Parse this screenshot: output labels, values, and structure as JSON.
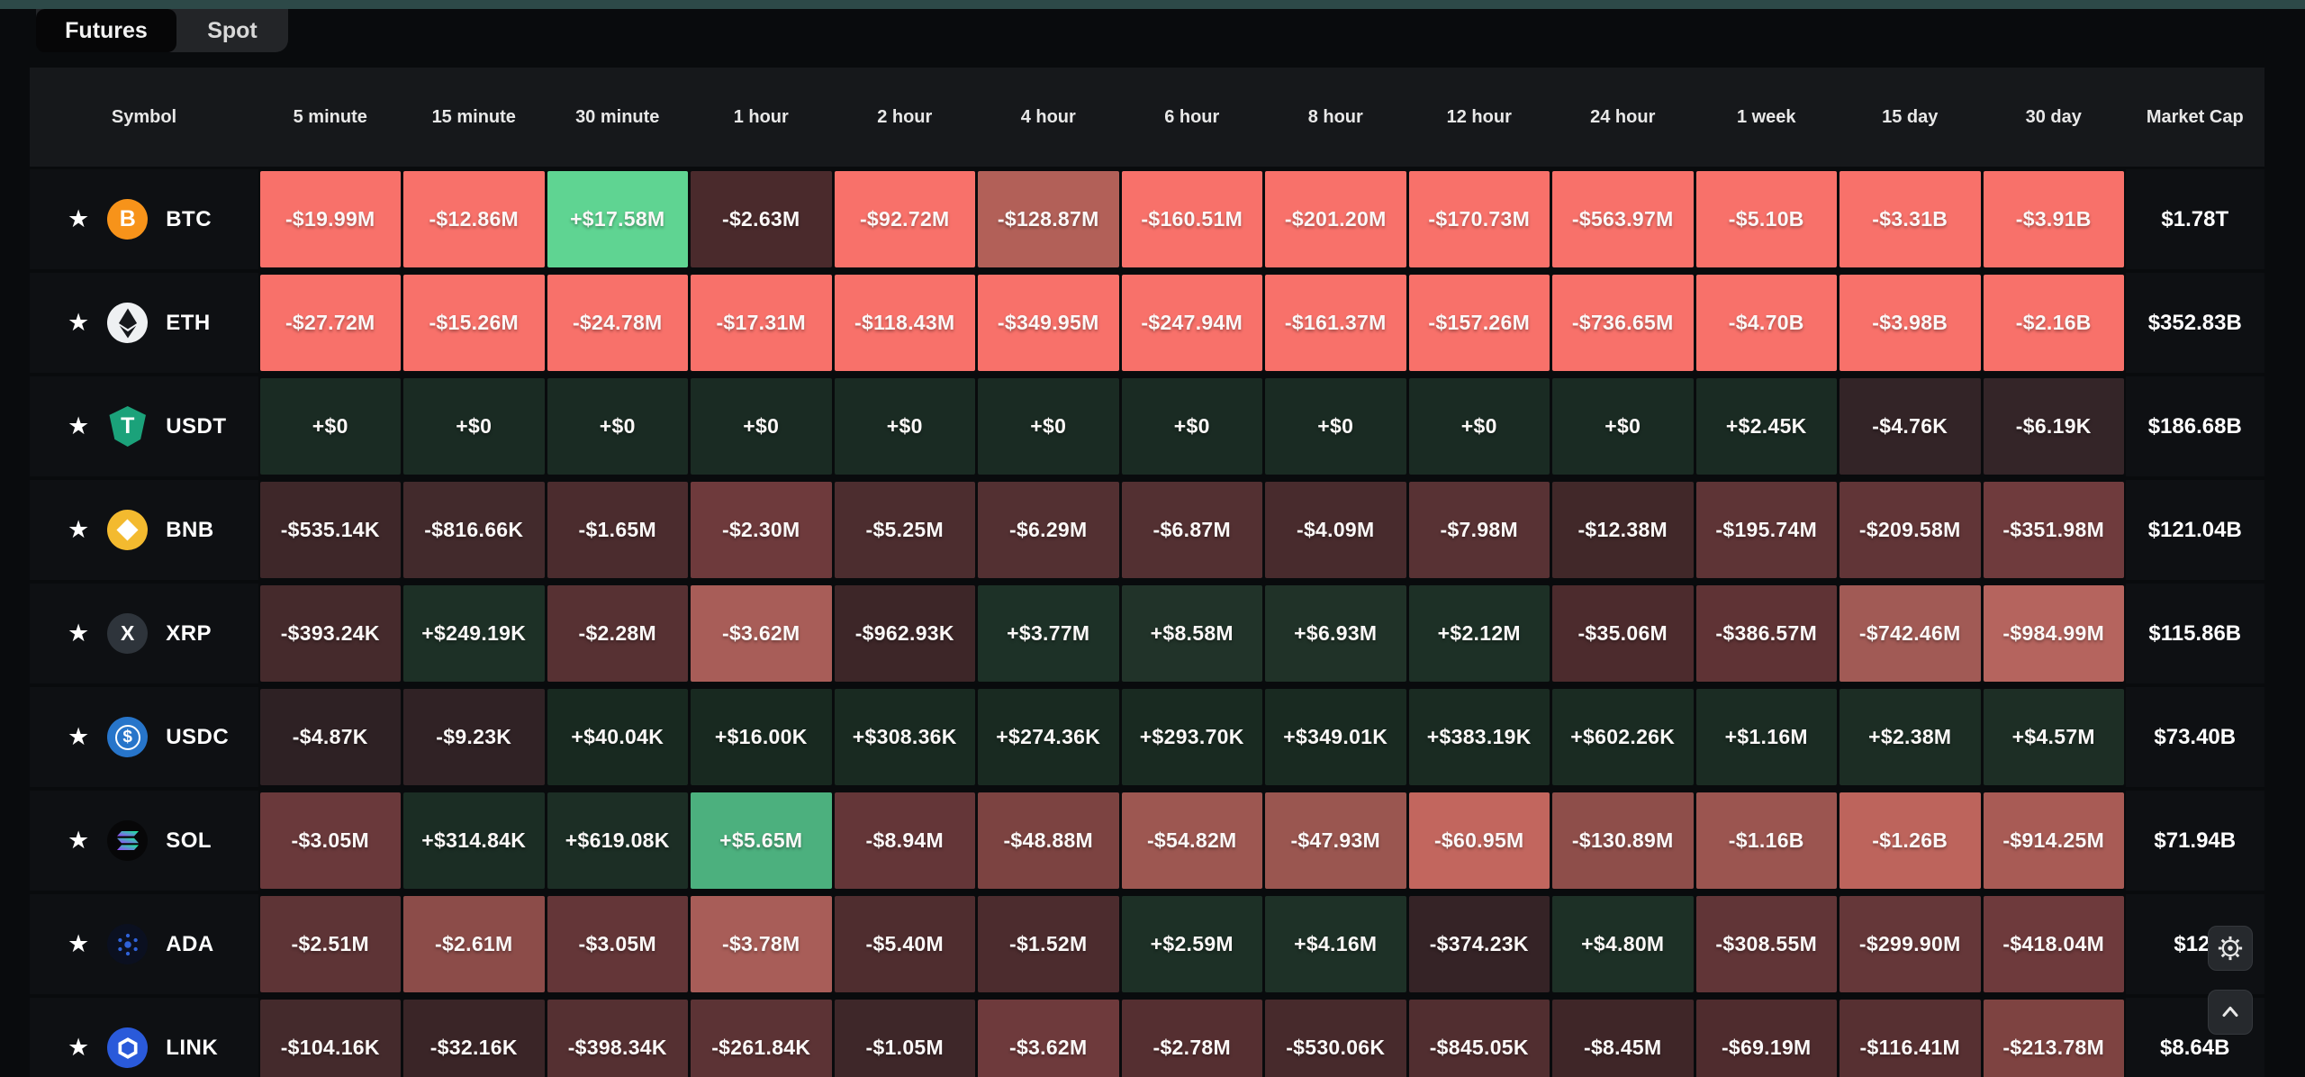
{
  "tabs": {
    "futures": "Futures",
    "spot": "Spot",
    "active": "Futures"
  },
  "columns": [
    "Symbol",
    "5 minute",
    "15 minute",
    "30 minute",
    "1 hour",
    "2 hour",
    "4 hour",
    "6 hour",
    "8 hour",
    "12 hour",
    "24 hour",
    "1 week",
    "15 day",
    "30 day",
    "Market Cap"
  ],
  "palette": {
    "page_bg": "#090b0d",
    "row_bg": "#0e1013",
    "header_bg": "#16181b",
    "topbar_teal": "#2d4948",
    "positive_bright": "#5fd492",
    "negative_bright": "#f8716a"
  },
  "rows": [
    {
      "symbol": "BTC",
      "icon": "btc-coin-icon",
      "market_cap": "$1.78T",
      "cells": [
        {
          "v": "-$19.99M",
          "c": "#f8716a"
        },
        {
          "v": "-$12.86M",
          "c": "#f8716a"
        },
        {
          "v": "+$17.58M",
          "c": "#5fd492"
        },
        {
          "v": "-$2.63M",
          "c": "#4a2a2c"
        },
        {
          "v": "-$92.72M",
          "c": "#f8716a"
        },
        {
          "v": "-$128.87M",
          "c": "#b26058"
        },
        {
          "v": "-$160.51M",
          "c": "#f8716a"
        },
        {
          "v": "-$201.20M",
          "c": "#f8716a"
        },
        {
          "v": "-$170.73M",
          "c": "#f8716a"
        },
        {
          "v": "-$563.97M",
          "c": "#f8716a"
        },
        {
          "v": "-$5.10B",
          "c": "#f8716a"
        },
        {
          "v": "-$3.31B",
          "c": "#f8716a"
        },
        {
          "v": "-$3.91B",
          "c": "#f8716a"
        }
      ]
    },
    {
      "symbol": "ETH",
      "icon": "eth-coin-icon",
      "market_cap": "$352.83B",
      "cells": [
        {
          "v": "-$27.72M",
          "c": "#f8716a"
        },
        {
          "v": "-$15.26M",
          "c": "#f8716a"
        },
        {
          "v": "-$24.78M",
          "c": "#f8716a"
        },
        {
          "v": "-$17.31M",
          "c": "#f8716a"
        },
        {
          "v": "-$118.43M",
          "c": "#f8716a"
        },
        {
          "v": "-$349.95M",
          "c": "#f8716a"
        },
        {
          "v": "-$247.94M",
          "c": "#f8716a"
        },
        {
          "v": "-$161.37M",
          "c": "#f8716a"
        },
        {
          "v": "-$157.26M",
          "c": "#f8716a"
        },
        {
          "v": "-$736.65M",
          "c": "#f8716a"
        },
        {
          "v": "-$4.70B",
          "c": "#f8716a"
        },
        {
          "v": "-$3.98B",
          "c": "#f8716a"
        },
        {
          "v": "-$2.16B",
          "c": "#f8716a"
        }
      ]
    },
    {
      "symbol": "USDT",
      "icon": "usdt-coin-icon",
      "market_cap": "$186.68B",
      "cells": [
        {
          "v": "+$0",
          "c": "#1a2b23"
        },
        {
          "v": "+$0",
          "c": "#1a2b23"
        },
        {
          "v": "+$0",
          "c": "#1a2b23"
        },
        {
          "v": "+$0",
          "c": "#1a2b23"
        },
        {
          "v": "+$0",
          "c": "#1a2b23"
        },
        {
          "v": "+$0",
          "c": "#1a2b23"
        },
        {
          "v": "+$0",
          "c": "#1a2b23"
        },
        {
          "v": "+$0",
          "c": "#1a2b23"
        },
        {
          "v": "+$0",
          "c": "#1a2b23"
        },
        {
          "v": "+$0",
          "c": "#1a2b23"
        },
        {
          "v": "+$2.45K",
          "c": "#1a2b23"
        },
        {
          "v": "-$4.76K",
          "c": "#332427"
        },
        {
          "v": "-$6.19K",
          "c": "#342528"
        }
      ]
    },
    {
      "symbol": "BNB",
      "icon": "bnb-coin-icon",
      "market_cap": "$121.04B",
      "cells": [
        {
          "v": "-$535.14K",
          "c": "#3e2729"
        },
        {
          "v": "-$816.66K",
          "c": "#422a2c"
        },
        {
          "v": "-$1.65M",
          "c": "#4b2c2e"
        },
        {
          "v": "-$2.30M",
          "c": "#6e3a3c"
        },
        {
          "v": "-$5.25M",
          "c": "#4c2d2f"
        },
        {
          "v": "-$6.29M",
          "c": "#533032"
        },
        {
          "v": "-$6.87M",
          "c": "#533032"
        },
        {
          "v": "-$4.09M",
          "c": "#482b2d"
        },
        {
          "v": "-$7.98M",
          "c": "#583234"
        },
        {
          "v": "-$12.38M",
          "c": "#412829"
        },
        {
          "v": "-$195.74M",
          "c": "#5e3436"
        },
        {
          "v": "-$209.58M",
          "c": "#613537"
        },
        {
          "v": "-$351.98M",
          "c": "#6f3b3d"
        }
      ]
    },
    {
      "symbol": "XRP",
      "icon": "xrp-coin-icon",
      "market_cap": "$115.86B",
      "cells": [
        {
          "v": "-$393.24K",
          "c": "#452a2c"
        },
        {
          "v": "+$249.19K",
          "c": "#1d3026"
        },
        {
          "v": "-$2.28M",
          "c": "#573133"
        },
        {
          "v": "-$3.62M",
          "c": "#a85d58"
        },
        {
          "v": "-$962.93K",
          "c": "#3d2628"
        },
        {
          "v": "+$3.77M",
          "c": "#1d3127"
        },
        {
          "v": "+$8.58M",
          "c": "#213329"
        },
        {
          "v": "+$6.93M",
          "c": "#203228"
        },
        {
          "v": "+$2.12M",
          "c": "#1d3026"
        },
        {
          "v": "-$35.06M",
          "c": "#4c2b2d"
        },
        {
          "v": "-$386.57M",
          "c": "#5f3335"
        },
        {
          "v": "-$742.46M",
          "c": "#a15a55"
        },
        {
          "v": "-$984.99M",
          "c": "#b5645e"
        }
      ]
    },
    {
      "symbol": "USDC",
      "icon": "usdc-coin-icon",
      "market_cap": "$73.40B",
      "cells": [
        {
          "v": "-$4.87K",
          "c": "#2e2124"
        },
        {
          "v": "-$9.23K",
          "c": "#302225"
        },
        {
          "v": "+$40.04K",
          "c": "#182920"
        },
        {
          "v": "+$16.00K",
          "c": "#182920"
        },
        {
          "v": "+$308.36K",
          "c": "#192a21"
        },
        {
          "v": "+$274.36K",
          "c": "#192a21"
        },
        {
          "v": "+$293.70K",
          "c": "#192a21"
        },
        {
          "v": "+$349.01K",
          "c": "#192a21"
        },
        {
          "v": "+$383.19K",
          "c": "#1a2b22"
        },
        {
          "v": "+$602.26K",
          "c": "#1a2b22"
        },
        {
          "v": "+$1.16M",
          "c": "#1b2c23"
        },
        {
          "v": "+$2.38M",
          "c": "#1c2d24"
        },
        {
          "v": "+$4.57M",
          "c": "#1d2e25"
        }
      ]
    },
    {
      "symbol": "SOL",
      "icon": "sol-coin-icon",
      "market_cap": "$71.94B",
      "cells": [
        {
          "v": "-$3.05M",
          "c": "#6a393b"
        },
        {
          "v": "+$314.84K",
          "c": "#1b2d24"
        },
        {
          "v": "+$619.08K",
          "c": "#1c2e25"
        },
        {
          "v": "+$5.65M",
          "c": "#4cb07e"
        },
        {
          "v": "-$8.94M",
          "c": "#643638"
        },
        {
          "v": "-$48.88M",
          "c": "#7c4341"
        },
        {
          "v": "-$54.82M",
          "c": "#9d5751"
        },
        {
          "v": "-$47.93M",
          "c": "#9a5650"
        },
        {
          "v": "-$60.95M",
          "c": "#c2665e"
        },
        {
          "v": "-$130.89M",
          "c": "#8e4e4a"
        },
        {
          "v": "-$1.16B",
          "c": "#9b5550"
        },
        {
          "v": "-$1.26B",
          "c": "#bd645c"
        },
        {
          "v": "-$914.25M",
          "c": "#a85b55"
        }
      ]
    },
    {
      "symbol": "ADA",
      "icon": "ada-coin-icon",
      "market_cap": "$12.",
      "cells": [
        {
          "v": "-$2.51M",
          "c": "#5e3436"
        },
        {
          "v": "-$2.61M",
          "c": "#8c4c49"
        },
        {
          "v": "-$3.05M",
          "c": "#643638"
        },
        {
          "v": "-$3.78M",
          "c": "#a85d58"
        },
        {
          "v": "-$5.40M",
          "c": "#4f2d2f"
        },
        {
          "v": "-$1.52M",
          "c": "#4c2c2e"
        },
        {
          "v": "+$2.59M",
          "c": "#1d3026"
        },
        {
          "v": "+$4.16M",
          "c": "#1e3127"
        },
        {
          "v": "-$374.23K",
          "c": "#352326"
        },
        {
          "v": "+$4.80M",
          "c": "#1d3026"
        },
        {
          "v": "-$308.55M",
          "c": "#613537"
        },
        {
          "v": "-$299.90M",
          "c": "#653739"
        },
        {
          "v": "-$418.04M",
          "c": "#6e3a3c"
        }
      ]
    },
    {
      "symbol": "LINK",
      "icon": "link-coin-icon",
      "market_cap": "$8.64B",
      "cells": [
        {
          "v": "-$104.16K",
          "c": "#442a2c"
        },
        {
          "v": "-$32.16K",
          "c": "#3a2527"
        },
        {
          "v": "-$398.34K",
          "c": "#553032"
        },
        {
          "v": "-$261.84K",
          "c": "#5c3335"
        },
        {
          "v": "-$1.05M",
          "c": "#3e2729"
        },
        {
          "v": "-$3.62M",
          "c": "#6e3a3c"
        },
        {
          "v": "-$2.78M",
          "c": "#552f31"
        },
        {
          "v": "-$530.06K",
          "c": "#472a2c"
        },
        {
          "v": "-$845.05K",
          "c": "#512e30"
        },
        {
          "v": "-$8.45M",
          "c": "#3f2628"
        },
        {
          "v": "-$69.19M",
          "c": "#4f2c2e"
        },
        {
          "v": "-$116.41M",
          "c": "#573032"
        },
        {
          "v": "-$213.78M",
          "c": "#7e4341"
        }
      ]
    }
  ],
  "floating_buttons": [
    {
      "name": "settings",
      "icon": "gear-icon"
    },
    {
      "name": "scroll-top",
      "icon": "chevron-up-icon"
    }
  ]
}
